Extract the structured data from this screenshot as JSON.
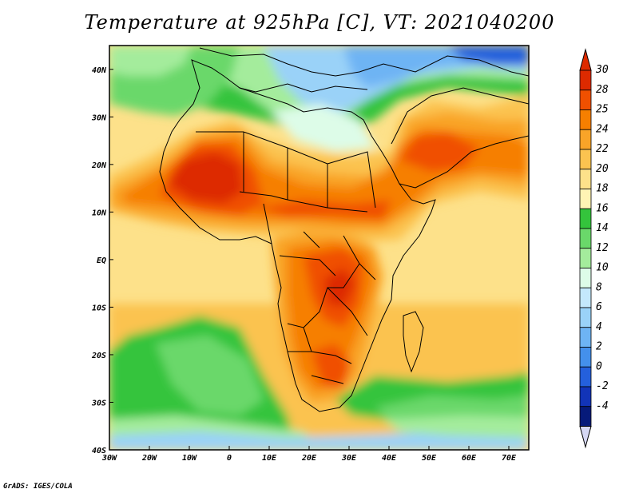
{
  "title": "Temperature at 925hPa [C], VT: 2021040200",
  "map": {
    "lon_labels": [
      "30W",
      "20W",
      "10W",
      "0",
      "10E",
      "20E",
      "30E",
      "40E",
      "50E",
      "60E",
      "70E"
    ],
    "lat_labels": [
      "40N",
      "30N",
      "20N",
      "10N",
      "EQ",
      "10S",
      "20S",
      "30S",
      "40S"
    ],
    "lon_range": [
      -30,
      75
    ],
    "lat_range": [
      -40,
      45
    ]
  },
  "colorbar": {
    "labels": [
      "30",
      "28",
      "25",
      "24",
      "22",
      "20",
      "18",
      "16",
      "14",
      "12",
      "10",
      "8",
      "6",
      "4",
      "2",
      "0",
      "-2",
      "-4"
    ],
    "colors": [
      "#dd2a00",
      "#f05000",
      "#f67f00",
      "#f9a428",
      "#fbc350",
      "#fde18a",
      "#fff4b4",
      "#34c43c",
      "#6ad86a",
      "#a4ec9c",
      "#ddfce8",
      "#c4e8fc",
      "#9ad2f8",
      "#6eb4f4",
      "#4490ec",
      "#2460dc",
      "#1234b8",
      "#061a7a"
    ],
    "top_color": "#dd2a00",
    "bottom_color": "#d6d8f4"
  },
  "credit": "GrADS: IGES/COLA"
}
